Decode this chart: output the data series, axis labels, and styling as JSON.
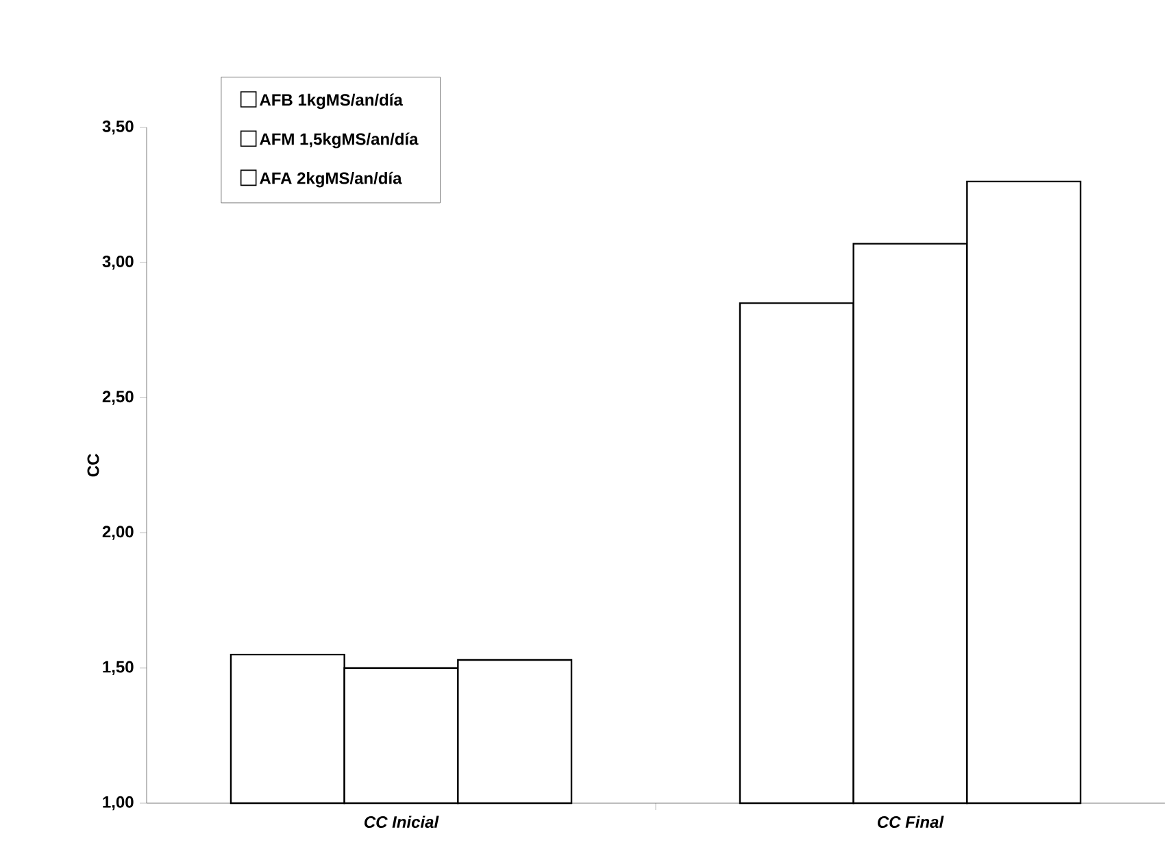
{
  "chart_data": {
    "type": "bar",
    "ylabel": "CC",
    "categories": [
      "CC Inicial",
      "CC Final"
    ],
    "series": [
      {
        "name": "AFB 1kgMS/an/día",
        "color": "#ffffff",
        "values": [
          1.55,
          2.85
        ]
      },
      {
        "name": "AFM 1,5kgMS/an/día",
        "color": "#ffffff",
        "values": [
          1.5,
          3.07
        ]
      },
      {
        "name": "AFA 2kgMS/an/día",
        "color": "#ffffff",
        "values": [
          1.53,
          3.3
        ]
      }
    ],
    "ylim": [
      1,
      3.5
    ],
    "yticks": [
      {
        "value": 1,
        "label": "1,00"
      },
      {
        "value": 1.5,
        "label": "1,50"
      },
      {
        "value": 2,
        "label": "2,00"
      },
      {
        "value": 2.5,
        "label": "2,50"
      },
      {
        "value": 3,
        "label": "3,00"
      },
      {
        "value": 3.5,
        "label": "3,50"
      }
    ],
    "grid": false,
    "legend": "top left"
  }
}
